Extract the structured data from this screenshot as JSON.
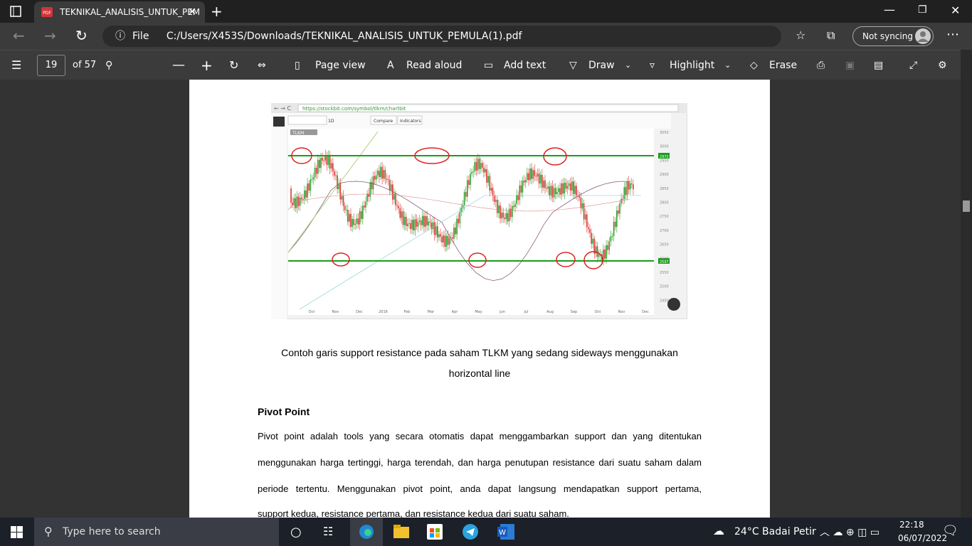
{
  "browser": {
    "tab_title": "TEKNIKAL_ANALISIS_UNTUK_PEM",
    "address_prefix": "File",
    "address": "C:/Users/X453S/Downloads/TEKNIKAL_ANALISIS_UNTUK_PEMULA(1).pdf",
    "sync": "Not syncing"
  },
  "toolbar": {
    "page": "19",
    "page_count": "of 57",
    "page_view": "Page view",
    "read_aloud": "Read aloud",
    "add_text": "Add text",
    "draw": "Draw",
    "highlight": "Highlight",
    "erase": "Erase"
  },
  "figure": {
    "url": "https://stockbit.com/symbol/tlkm/chartbit",
    "symbol": "TLKM",
    "interval": "1D",
    "compare": "Compare",
    "indicators": "Indicators",
    "months": [
      "Oct",
      "Nov",
      "Dec",
      "2016",
      "Feb",
      "Mar",
      "Apr",
      "May",
      "Jun",
      "Jul",
      "Aug",
      "Sep",
      "Oct",
      "Nov",
      "Dec"
    ],
    "price_labels": [
      "3050",
      "3000",
      "2950",
      "2900",
      "2850",
      "2800",
      "2750",
      "2700",
      "2650",
      "2600",
      "2550",
      "2500",
      "2450"
    ],
    "resistance_tag": "2972",
    "support_tag": "2597"
  },
  "document": {
    "caption_lines": [
      "Contoh garis support resistance pada saham TLKM yang sedang sideways menggunakan",
      "horizontal line"
    ],
    "heading": "Pivot Point",
    "paragraph_lines": [
      "Pivot point adalah tools yang secara otomatis dapat menggambarkan support dan yang ditentukan",
      "menggunakan harga tertinggi, harga terendah, dan harga penutupan resistance dari suatu saham dalam",
      "periode tertentu. Menggunakan pivot point, anda dapat langsung mendapatkan support pertama,",
      "support kedua, resistance pertama, dan resistance kedua dari suatu saham."
    ]
  },
  "taskbar": {
    "search": "Type here to search",
    "weather": "24°C  Badai Petir",
    "time": "22:18",
    "date": "06/07/2022"
  }
}
